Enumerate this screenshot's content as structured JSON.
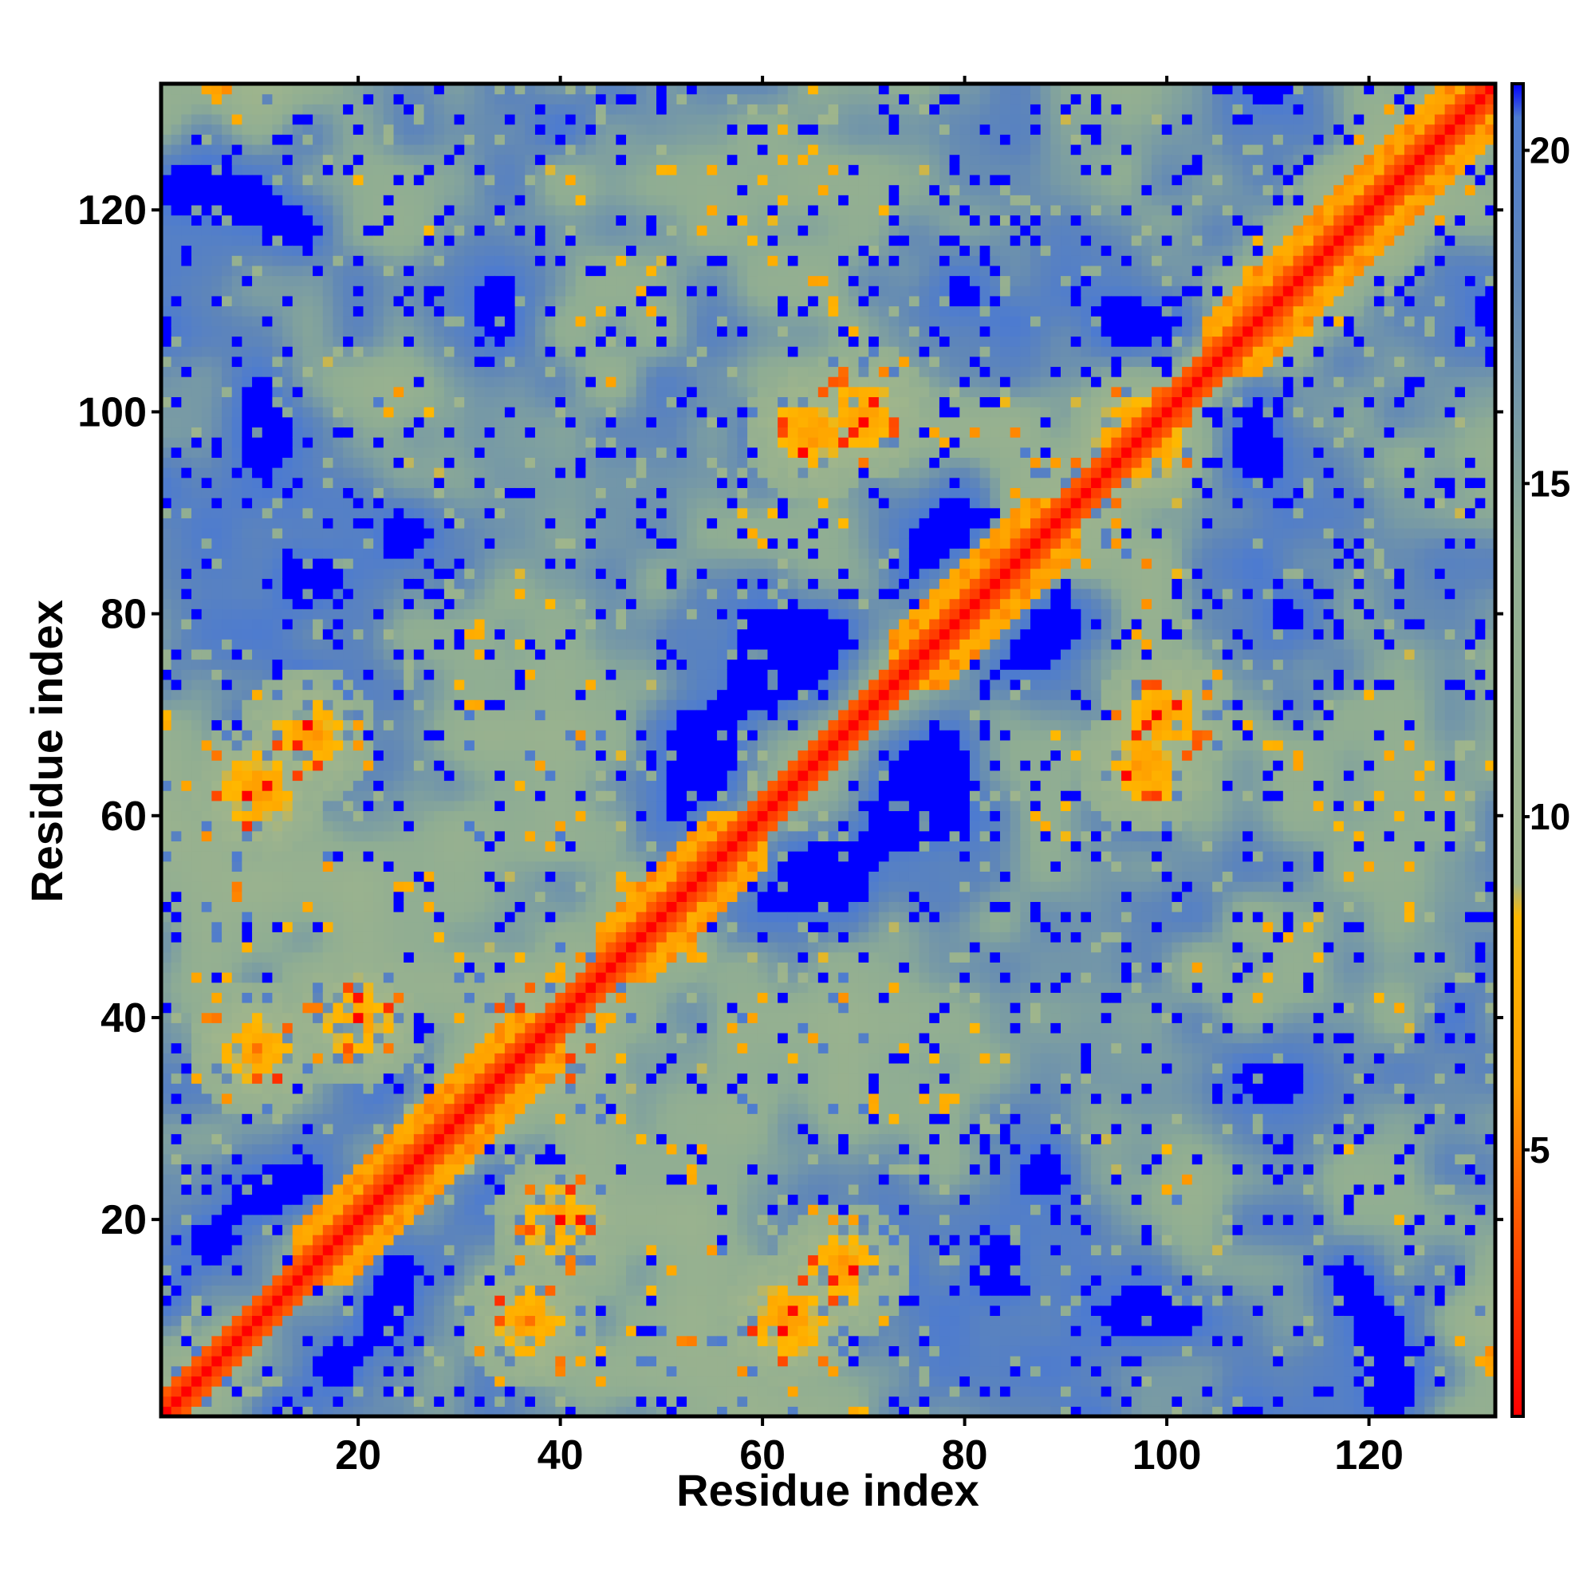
{
  "chart_data": {
    "type": "heatmap",
    "title": "",
    "xlabel": "Residue index",
    "ylabel": "Residue index",
    "n_residues": 132,
    "xlim": [
      1,
      132
    ],
    "ylim": [
      1,
      132
    ],
    "x_ticks": [
      20,
      40,
      60,
      80,
      100,
      120
    ],
    "y_ticks": [
      20,
      40,
      60,
      80,
      100,
      120
    ],
    "colorbar": {
      "label": "",
      "range": [
        1,
        21
      ],
      "ticks": [
        5,
        10,
        15,
        20
      ],
      "colors": [
        {
          "value": 1,
          "color": "#ff0000"
        },
        {
          "value": 4,
          "color": "#ff5a00"
        },
        {
          "value": 6,
          "color": "#ff9f00"
        },
        {
          "value": 8.5,
          "color": "#ffb800"
        },
        {
          "value": 9,
          "color": "#9fb58c"
        },
        {
          "value": 14,
          "color": "#8fad93"
        },
        {
          "value": 18,
          "color": "#5f86b8"
        },
        {
          "value": 20.5,
          "color": "#4d7bd0"
        },
        {
          "value": 21,
          "color": "#0000ff"
        }
      ]
    },
    "description_values": {
      "diagonal": "distance ~1-4 along i=j",
      "helix_bands": "distance 4-7 along |i-j| 3-4 for residues 15-40, 45-60, 75-90, 105-132",
      "contacts": [
        {
          "i": 10,
          "j": 62,
          "value": 6
        },
        {
          "i": 20,
          "j": 40,
          "value": 6
        },
        {
          "i": 37,
          "j": 10,
          "value": 6
        },
        {
          "i": 63,
          "j": 10,
          "value": 6
        },
        {
          "i": 68,
          "j": 15,
          "value": 6
        },
        {
          "i": 98,
          "j": 65,
          "value": 6
        },
        {
          "i": 65,
          "j": 98,
          "value": 6
        },
        {
          "i": 100,
          "j": 70,
          "value": 6
        }
      ]
    }
  }
}
